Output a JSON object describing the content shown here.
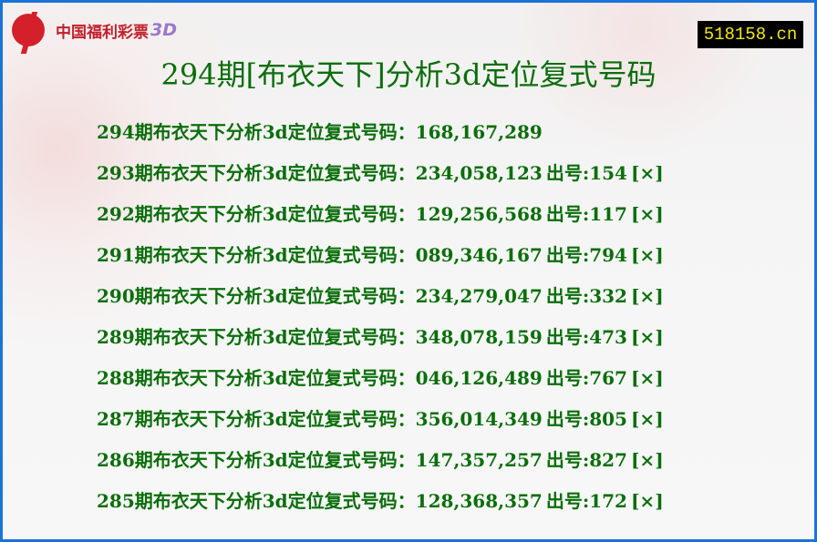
{
  "header": {
    "logo_text": "中国福利彩票",
    "logo_suffix": "3D",
    "site": "518158.cn",
    "title": "294期[布衣天下]分析3d定位复式号码"
  },
  "colors": {
    "text": "#0a6e0a",
    "border": "#1a73d9",
    "site_bg": "#000000",
    "site_text": "#f5e900"
  },
  "rows": [
    {
      "label": "294期布衣天下分析3d定位复式号码：",
      "numbers": "168,167,289",
      "result": "",
      "mark": ""
    },
    {
      "label": "293期布衣天下分析3d定位复式号码：",
      "numbers": "234,058,123",
      "result": "出号:154",
      "mark": "[×]"
    },
    {
      "label": "292期布衣天下分析3d定位复式号码：",
      "numbers": "129,256,568",
      "result": "出号:117",
      "mark": "[×]"
    },
    {
      "label": "291期布衣天下分析3d定位复式号码：",
      "numbers": "089,346,167",
      "result": "出号:794",
      "mark": "[×]"
    },
    {
      "label": "290期布衣天下分析3d定位复式号码：",
      "numbers": "234,279,047",
      "result": "出号:332",
      "mark": "[×]"
    },
    {
      "label": "289期布衣天下分析3d定位复式号码：",
      "numbers": "348,078,159",
      "result": "出号:473",
      "mark": "[×]"
    },
    {
      "label": "288期布衣天下分析3d定位复式号码：",
      "numbers": "046,126,489",
      "result": "出号:767",
      "mark": "[×]"
    },
    {
      "label": "287期布衣天下分析3d定位复式号码：",
      "numbers": "356,014,349",
      "result": "出号:805",
      "mark": "[×]"
    },
    {
      "label": "286期布衣天下分析3d定位复式号码：",
      "numbers": "147,357,257",
      "result": "出号:827",
      "mark": "[×]"
    },
    {
      "label": "285期布衣天下分析3d定位复式号码：",
      "numbers": "128,368,357",
      "result": "出号:172",
      "mark": "[×]"
    }
  ]
}
